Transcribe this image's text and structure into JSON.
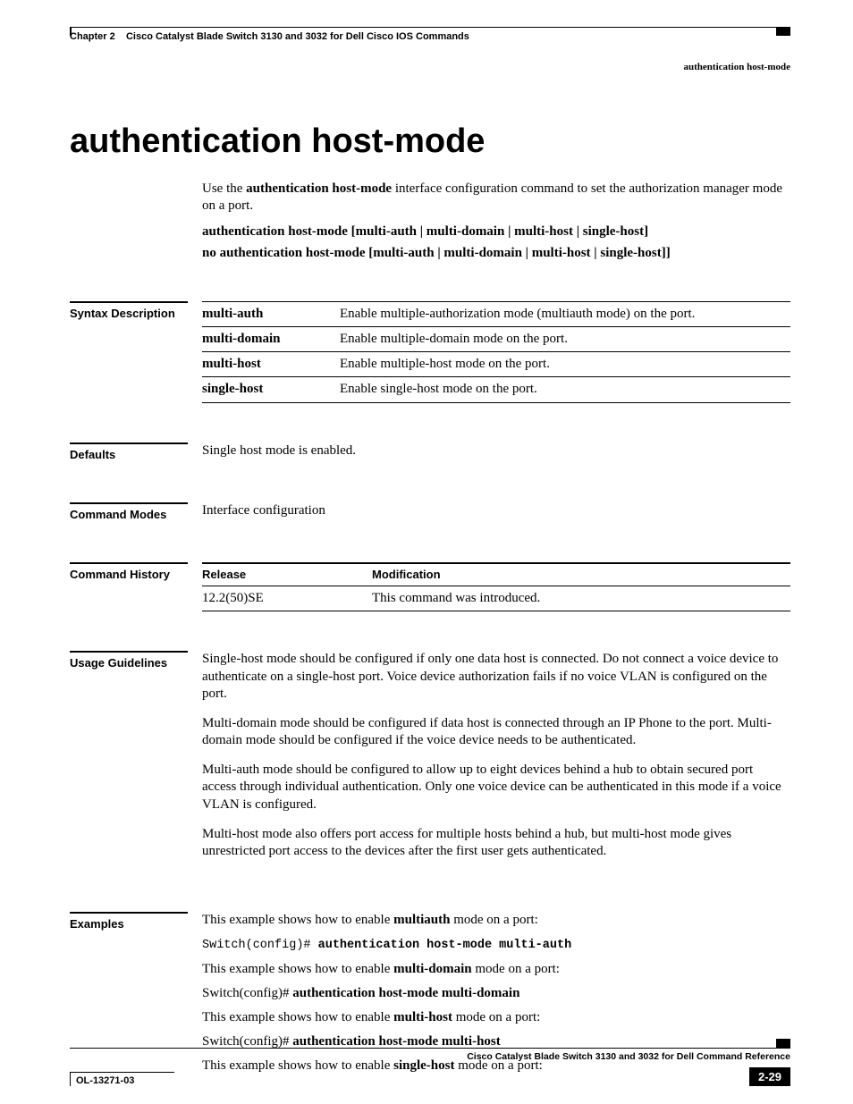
{
  "header": {
    "chapter_label": "Chapter 2",
    "chapter_title": "Cisco Catalyst Blade Switch 3130 and 3032 for Dell Cisco IOS Commands",
    "topic": "authentication host-mode"
  },
  "title": "authentication host-mode",
  "intro": {
    "prefix": "Use the ",
    "cmd": "authentication host-mode",
    "suffix": " interface configuration command to set the authorization manager mode on a port."
  },
  "syntax_lines": [
    "authentication host-mode [multi-auth | multi-domain | multi-host | single-host]",
    "no authentication host-mode [multi-auth | multi-domain | multi-host | single-host]]"
  ],
  "syntax_description": {
    "label": "Syntax Description",
    "rows": [
      {
        "param": "multi-auth",
        "desc": "Enable multiple-authorization mode (multiauth mode) on the port."
      },
      {
        "param": "multi-domain",
        "desc": "Enable multiple-domain mode on the port."
      },
      {
        "param": "multi-host",
        "desc": "Enable multiple-host mode on the port."
      },
      {
        "param": "single-host",
        "desc": "Enable single-host mode on the port."
      }
    ]
  },
  "defaults": {
    "label": "Defaults",
    "text": "Single host mode is enabled."
  },
  "command_modes": {
    "label": "Command Modes",
    "text": "Interface configuration"
  },
  "command_history": {
    "label": "Command History",
    "columns": [
      "Release",
      "Modification"
    ],
    "rows": [
      {
        "release": "12.2(50)SE",
        "modification": "This command was introduced."
      }
    ]
  },
  "usage": {
    "label": "Usage Guidelines",
    "paras": [
      "Single-host mode should be configured if only one data host is connected. Do not connect a voice device to authenticate on a single-host port. Voice device authorization fails if no voice VLAN is configured on the port.",
      "Multi-domain mode should be configured if data host is connected through an IP Phone to the port. Multi-domain mode should be configured if the voice device needs to be authenticated.",
      "Multi-auth mode should be configured to allow up to eight devices behind a hub to obtain secured port access through individual authentication. Only one voice device can be authenticated in this mode if a voice VLAN is configured.",
      "Multi-host mode also offers port access for multiple hosts behind a hub, but multi-host mode gives unrestricted port access to the devices after the first user gets authenticated."
    ]
  },
  "examples": {
    "label": "Examples",
    "items": [
      {
        "pre": "This example shows how to enable ",
        "bold": "multiauth",
        "post": " mode on a port:",
        "cmd_prefix": "Switch(config)# ",
        "cmd": "authentication host-mode multi-auth",
        "mono": true
      },
      {
        "pre": "This example shows how to enable ",
        "bold": "multi-domain",
        "post": " mode on a port:",
        "cmd_prefix": "Switch(config)# ",
        "cmd": "authentication host-mode multi-domain",
        "mono": false
      },
      {
        "pre": "This example shows how to enable ",
        "bold": "multi-host",
        "post": " mode on a port:",
        "cmd_prefix": "Switch(config)# ",
        "cmd": "authentication host-mode multi-host",
        "mono": false
      },
      {
        "pre": "This example shows how to enable ",
        "bold": "single-host",
        "post": " mode on a port:",
        "cmd_prefix": "",
        "cmd": "",
        "mono": false
      }
    ]
  },
  "footer": {
    "book": "Cisco Catalyst Blade Switch 3130 and 3032 for Dell Command Reference",
    "docnum": "OL-13271-03",
    "page": "2-29"
  }
}
